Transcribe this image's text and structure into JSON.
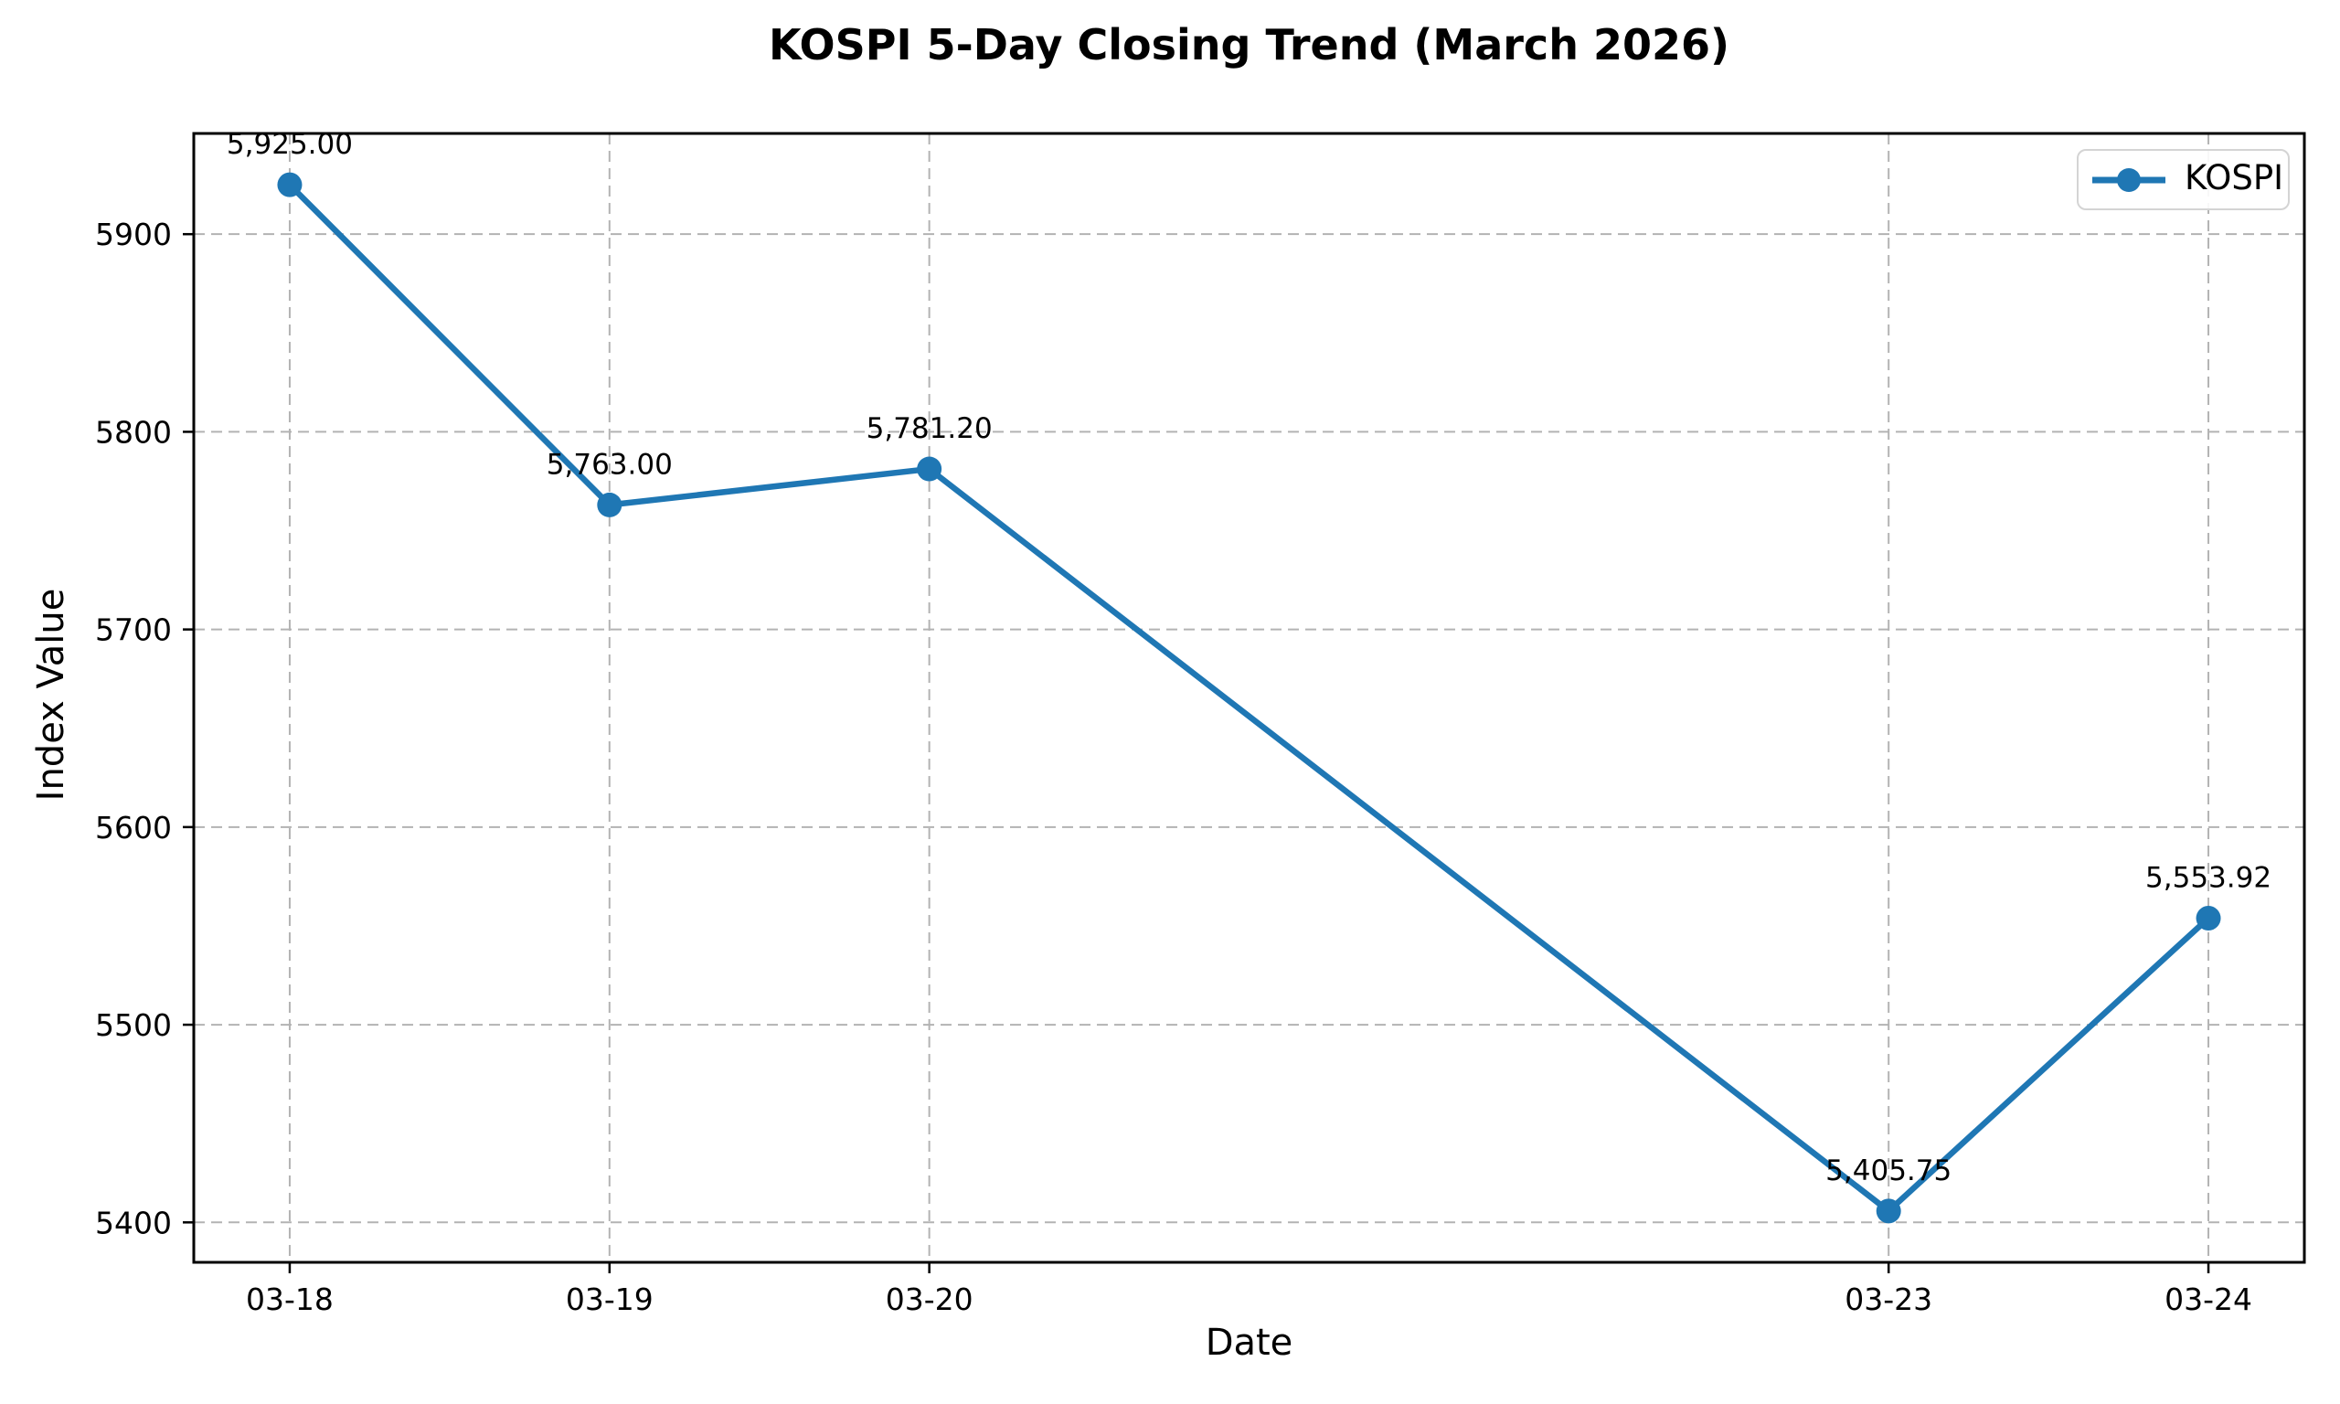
{
  "figure": {
    "background": "#ffffff"
  },
  "chart_data": {
    "type": "line",
    "title": "KOSPI 5-Day Closing Trend (March 2026)",
    "xlabel": "Date",
    "ylabel": "Index Value",
    "categories": [
      "03-18",
      "03-19",
      "03-20",
      "03-23",
      "03-24"
    ],
    "x_values": [
      18,
      19,
      20,
      23,
      24
    ],
    "series": [
      {
        "name": "KOSPI",
        "values": [
          5925.0,
          5763.0,
          5781.2,
          5405.75,
          5553.92
        ],
        "point_labels": [
          "5,925.00",
          "5,763.00",
          "5,781.20",
          "5,405.75",
          "5,553.92"
        ],
        "color": "#1f77b4",
        "marker": "circle"
      }
    ],
    "y_ticks": [
      5400,
      5500,
      5600,
      5700,
      5800,
      5900
    ],
    "xlim": [
      17.7,
      24.3
    ],
    "ylim": [
      5379.79,
      5950.96
    ],
    "grid": true,
    "grid_style": "dashed",
    "grid_color": "#b3b3b3",
    "axis_color": "#000000",
    "legend": {
      "position": "upper right",
      "label": "KOSPI"
    }
  }
}
